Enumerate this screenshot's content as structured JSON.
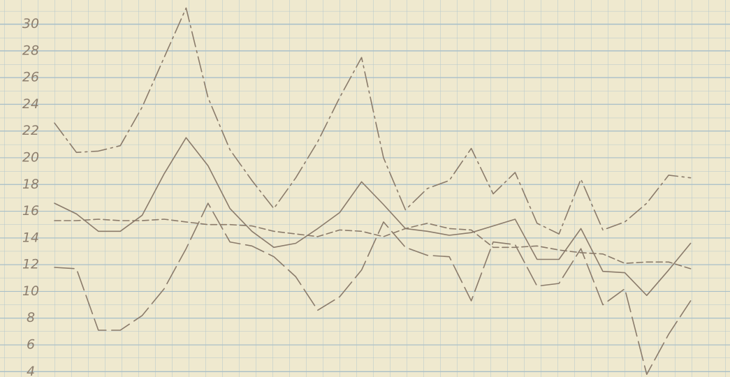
{
  "chart_data": {
    "type": "line",
    "ylim": [
      3.6,
      31.8
    ],
    "yticks": [
      4,
      6,
      8,
      10,
      12,
      14,
      16,
      18,
      20,
      22,
      24,
      26,
      28,
      30
    ],
    "grid": true,
    "series": [
      {
        "color": "#8a7b6b",
        "dash": "22 6 3 6",
        "values": [
          22.6,
          20.4,
          20.5,
          20.9,
          23.8,
          27.5,
          31.2,
          24.5,
          20.6,
          18.3,
          16.2,
          18.5,
          21.2,
          24.5,
          27.5,
          20,
          16.1,
          17.7,
          18.3,
          20.7,
          17.3,
          18.9,
          15.1,
          14.3,
          18.4,
          14.6,
          15.2,
          16.6,
          18.7,
          18.5
        ]
      },
      {
        "color": "#8a7b6b",
        "dash": "none",
        "values": [
          16.6,
          15.8,
          14.5,
          14.5,
          15.7,
          18.8,
          21.5,
          19.4,
          16.2,
          14.5,
          13.3,
          13.6,
          14.7,
          15.9,
          18.2,
          16.5,
          14.7,
          14.5,
          14.2,
          14.4,
          14.9,
          15.4,
          12.4,
          12.4,
          14.7,
          11.5,
          11.4,
          9.7,
          11.6,
          13.6
        ]
      },
      {
        "color": "#8a7b6b",
        "dash": "9 5",
        "values": [
          15.3,
          15.3,
          15.4,
          15.3,
          15.3,
          15.4,
          15.2,
          15.0,
          15.0,
          14.9,
          14.5,
          14.3,
          14.1,
          14.6,
          14.5,
          14.1,
          14.7,
          15.1,
          14.7,
          14.6,
          13.3,
          13.3,
          13.4,
          13.1,
          12.9,
          12.8,
          12.1,
          12.2,
          12.2,
          11.7
        ]
      },
      {
        "color": "#8a7b6b",
        "dash": "28 8",
        "values": [
          11.8,
          11.7,
          7.1,
          7.1,
          8.2,
          10.2,
          13.2,
          16.6,
          13.7,
          13.4,
          12.6,
          11.1,
          8.6,
          9.6,
          11.6,
          15.2,
          13.3,
          12.7,
          12.6,
          9.3,
          13.7,
          13.5,
          10.4,
          10.6,
          13.2,
          9.0,
          10.2,
          3.8,
          6.8,
          9.3
        ]
      }
    ]
  }
}
